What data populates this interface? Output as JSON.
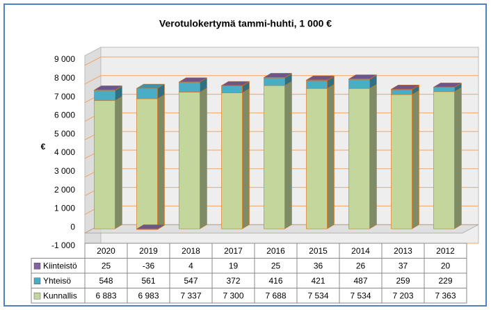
{
  "chart_data": {
    "type": "bar3d_stacked",
    "title": "Verotulokertymä tammi-huhti, 1 000 €",
    "ylabel": "€",
    "categories": [
      "2020",
      "2019",
      "2018",
      "2017",
      "2016",
      "2015",
      "2014",
      "2013",
      "2012"
    ],
    "series": [
      {
        "name": "Kunnallis",
        "color": "#c3d69b",
        "values": [
          6883,
          6983,
          7337,
          7300,
          7688,
          7534,
          7534,
          7203,
          7363
        ],
        "value_labels": [
          "6 883",
          "6 983",
          "7 337",
          "7 300",
          "7 688",
          "7 534",
          "7 534",
          "7 203",
          "7 363"
        ]
      },
      {
        "name": "Yhteisö",
        "color": "#4bacc6",
        "values": [
          548,
          561,
          547,
          372,
          416,
          421,
          487,
          259,
          229
        ]
      },
      {
        "name": "Kiinteistö",
        "color": "#8064a2",
        "values": [
          25,
          -36,
          4,
          19,
          25,
          36,
          26,
          37,
          20
        ]
      }
    ],
    "ylim": [
      -1000,
      9000
    ],
    "yticks": [
      {
        "value": -1000,
        "label": "-1 000"
      },
      0,
      {
        "value": 1000,
        "label": "1 000"
      },
      {
        "value": 2000,
        "label": "2 000"
      },
      {
        "value": 3000,
        "label": "3 000"
      },
      {
        "value": 4000,
        "label": "4 000"
      },
      {
        "value": 5000,
        "label": "5 000"
      },
      {
        "value": 6000,
        "label": "6 000"
      },
      {
        "value": 7000,
        "label": "7 000"
      },
      {
        "value": 8000,
        "label": "8 000"
      },
      {
        "value": 9000,
        "label": "9 000"
      }
    ],
    "grid": true
  }
}
